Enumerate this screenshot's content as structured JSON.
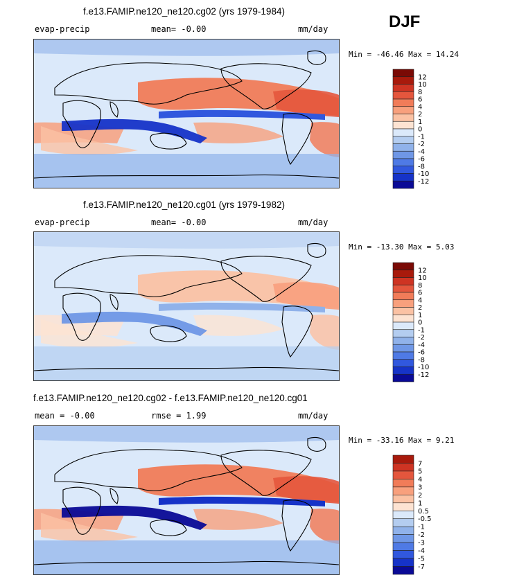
{
  "season": "DJF",
  "colors": {
    "land_outline": "#000000",
    "blue_scale": [
      "#dbe9fa",
      "#b4cdf0",
      "#90b2ea",
      "#6f97e6",
      "#4f7ae5",
      "#3158de",
      "#1633c8",
      "#0a0a96"
    ],
    "red_scale": [
      "#fde3d2",
      "#fbc2a4",
      "#f8a07d",
      "#f17c59",
      "#e4563d",
      "#ce3423",
      "#a81a0c",
      "#7a0a05"
    ]
  },
  "panels": [
    {
      "id": "panel-1",
      "title": "f.e13.FAMIP.ne120_ne120.cg02 (yrs 1979-1984)",
      "left_label": "evap-precip",
      "center_label": "mean=  -0.00",
      "units": "mm/day",
      "minmax": "Min = -46.46 Max =  14.24",
      "colorbar_labels": [
        "12",
        "10",
        "8",
        "6",
        "4",
        "2",
        "1",
        "0",
        "-1",
        "-2",
        "-4",
        "-6",
        "-8",
        "-10",
        "-12"
      ],
      "intensity": 1.0
    },
    {
      "id": "panel-2",
      "title": "f.e13.FAMIP.ne120_ne120.cg01 (yrs 1979-1982)",
      "left_label": "evap-precip",
      "center_label": "mean=  -0.00",
      "units": "mm/day",
      "minmax": "Min = -13.30 Max =   5.03",
      "colorbar_labels": [
        "12",
        "10",
        "8",
        "6",
        "4",
        "2",
        "1",
        "0",
        "-1",
        "-2",
        "-4",
        "-6",
        "-8",
        "-10",
        "-12"
      ],
      "intensity": 0.45
    },
    {
      "id": "panel-3",
      "title": "f.e13.FAMIP.ne120_ne120.cg02 - f.e13.FAMIP.ne120_ne120.cg01",
      "left_label": "mean =  -0.00",
      "center_label": "rmse =   1.99",
      "units": "mm/day",
      "minmax": "Min = -33.16 Max =   9.21",
      "colorbar_labels": [
        "7",
        "5",
        "4",
        "3",
        "2",
        "1",
        "0.5",
        "-0.5",
        "-1",
        "-2",
        "-3",
        "-4",
        "-5",
        "-7"
      ],
      "intensity": 1.1
    }
  ]
}
